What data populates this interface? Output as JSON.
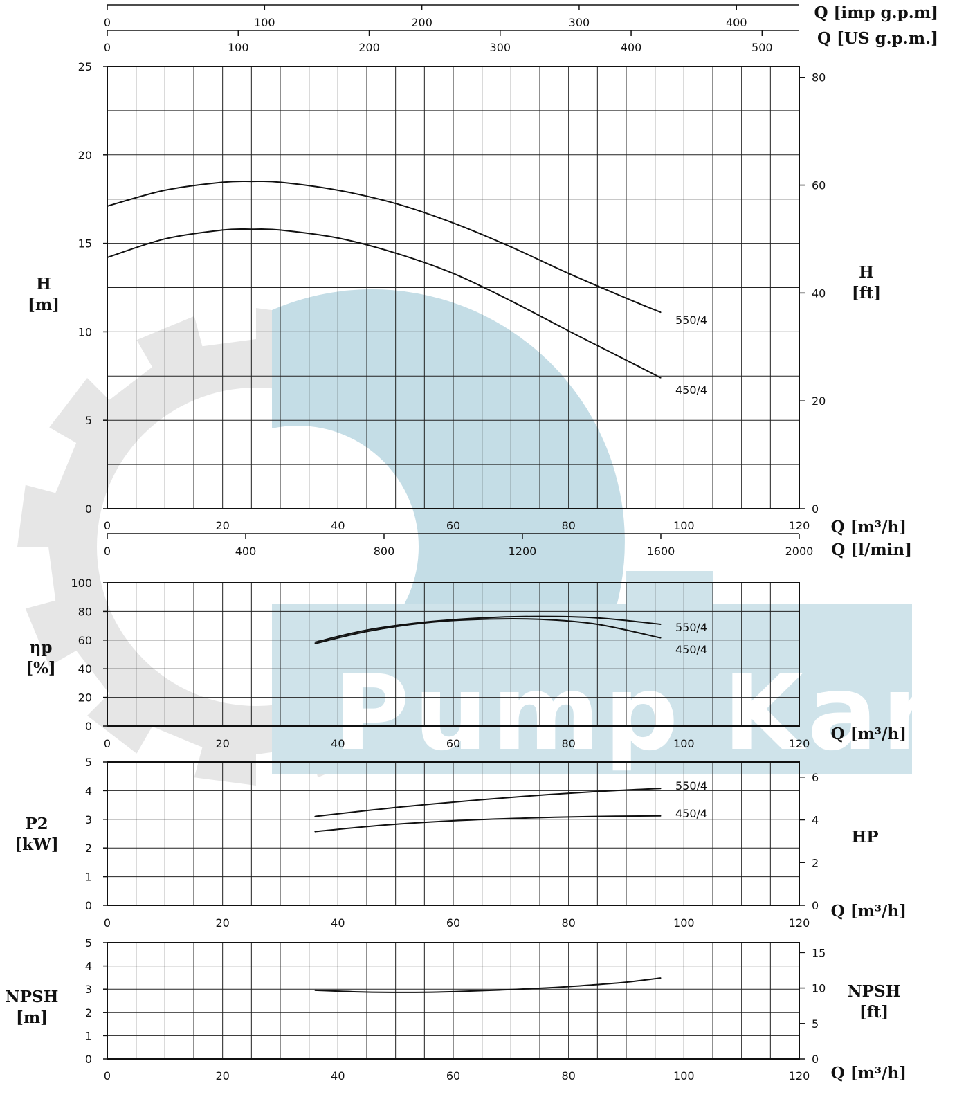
{
  "watermark": {
    "text": "Pump Kar",
    "gear_color": "#e6e6e6",
    "block_color": "#cfe3ea",
    "ring_color": "#c4dde6"
  },
  "chart_data": [
    {
      "name": "head",
      "type": "line",
      "xlabel": "Q [m³/h]",
      "ylabel": [
        "H",
        "[m]"
      ],
      "ylabel_right": [
        "H",
        "[ft]"
      ],
      "xlim": [
        0,
        120
      ],
      "ylim": [
        0,
        25
      ],
      "xticks": [
        0,
        20,
        40,
        60,
        80,
        100,
        120
      ],
      "yticks": [
        0,
        5,
        10,
        15,
        20,
        25
      ],
      "right_ticks": [
        0,
        20,
        40,
        60,
        80
      ],
      "right_factor": 3.2808,
      "grid": true,
      "top_axes": [
        {
          "label": "Q [imp g.p.m]",
          "factor": 3.666,
          "ticks": [
            0,
            100,
            200,
            300,
            400
          ]
        },
        {
          "label": "Q [US g.p.m.]",
          "factor": 4.403,
          "ticks": [
            0,
            100,
            200,
            300,
            400,
            500
          ]
        }
      ],
      "bottom_axis2": {
        "label": "Q [l/min]",
        "factor": 16.667,
        "ticks": [
          0,
          400,
          800,
          1200,
          1600,
          2000
        ]
      },
      "series": [
        {
          "name": "550/4",
          "x": [
            0,
            10,
            20,
            25,
            30,
            40,
            50,
            60,
            70,
            80,
            90,
            96
          ],
          "y": [
            17.1,
            18.0,
            18.45,
            18.5,
            18.45,
            18.0,
            17.25,
            16.15,
            14.8,
            13.3,
            11.9,
            11.1
          ]
        },
        {
          "name": "450/4",
          "x": [
            0,
            10,
            20,
            25,
            30,
            40,
            50,
            60,
            70,
            80,
            90,
            96
          ],
          "y": [
            14.2,
            15.25,
            15.75,
            15.8,
            15.75,
            15.3,
            14.45,
            13.3,
            11.75,
            10.05,
            8.4,
            7.4
          ]
        }
      ]
    },
    {
      "name": "efficiency",
      "type": "line",
      "xlabel": "Q [m³/h]",
      "ylabel": [
        "ηp",
        "[%]"
      ],
      "xlim": [
        0,
        120
      ],
      "ylim": [
        0,
        100
      ],
      "xticks": [
        0,
        20,
        40,
        60,
        80,
        100,
        120
      ],
      "yticks": [
        0,
        20,
        40,
        60,
        80,
        100
      ],
      "grid": true,
      "series": [
        {
          "name": "550/4",
          "x": [
            36,
            45,
            55,
            65,
            75,
            85,
            96
          ],
          "y": [
            58.5,
            67,
            72.5,
            75.5,
            76.5,
            75.5,
            71
          ]
        },
        {
          "name": "450/4",
          "x": [
            36,
            45,
            55,
            65,
            75,
            85,
            96
          ],
          "y": [
            57.5,
            66,
            72,
            74.5,
            74.5,
            71,
            61.5
          ]
        }
      ]
    },
    {
      "name": "power",
      "type": "line",
      "xlabel": "Q [m³/h]",
      "ylabel": [
        "P2",
        "[kW]"
      ],
      "ylabel_right": [
        "HP"
      ],
      "xlim": [
        0,
        120
      ],
      "ylim": [
        0,
        5
      ],
      "xticks": [
        0,
        20,
        40,
        60,
        80,
        100,
        120
      ],
      "yticks": [
        0,
        1,
        2,
        3,
        4,
        5
      ],
      "right_ticks": [
        0,
        2,
        4,
        6
      ],
      "right_factor": 1.341,
      "grid": true,
      "series": [
        {
          "name": "550/4",
          "x": [
            36,
            48,
            60,
            72,
            84,
            96
          ],
          "y": [
            3.1,
            3.37,
            3.6,
            3.8,
            3.96,
            4.08
          ]
        },
        {
          "name": "450/4",
          "x": [
            36,
            48,
            60,
            72,
            84,
            96
          ],
          "y": [
            2.57,
            2.8,
            2.95,
            3.04,
            3.1,
            3.12
          ]
        }
      ]
    },
    {
      "name": "npsh",
      "type": "line",
      "xlabel": "Q [m³/h]",
      "ylabel": [
        "NPSH",
        "[m]"
      ],
      "ylabel_right": [
        "NPSH",
        "[ft]"
      ],
      "xlim": [
        0,
        120
      ],
      "ylim": [
        0,
        5
      ],
      "xticks": [
        0,
        20,
        40,
        60,
        80,
        100,
        120
      ],
      "yticks": [
        0,
        1,
        2,
        3,
        4,
        5
      ],
      "right_ticks": [
        0,
        5,
        10,
        15
      ],
      "right_factor": 3.2808,
      "grid": true,
      "series": [
        {
          "x": [
            36,
            44,
            52,
            60,
            68,
            76,
            84,
            90,
            96
          ],
          "y": [
            2.95,
            2.88,
            2.86,
            2.89,
            2.96,
            3.05,
            3.18,
            3.3,
            3.48
          ]
        }
      ]
    }
  ]
}
